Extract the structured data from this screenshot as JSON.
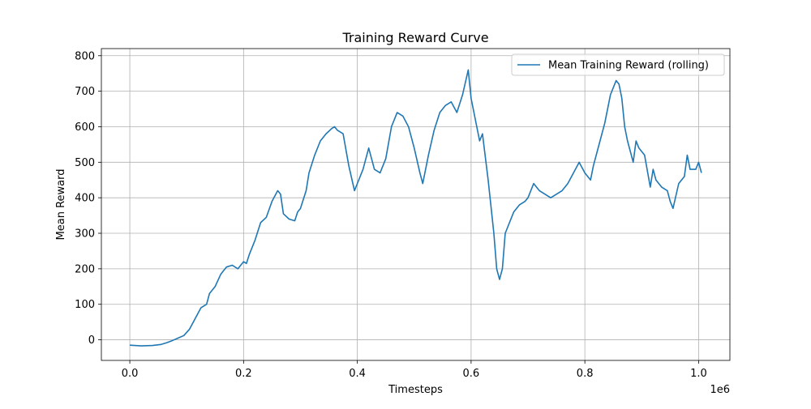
{
  "chart_data": {
    "type": "line",
    "title": "Training Reward Curve",
    "xlabel": "Timesteps",
    "ylabel": "Mean Reward",
    "x_offset_text": "1e6",
    "xlim": [
      -0.05,
      1.055
    ],
    "ylim": [
      -58,
      820
    ],
    "xticks": [
      0.0,
      0.2,
      0.4,
      0.6,
      0.8,
      1.0
    ],
    "xtick_labels": [
      "0.0",
      "0.2",
      "0.4",
      "0.6",
      "0.8",
      "1.0"
    ],
    "yticks": [
      0,
      100,
      200,
      300,
      400,
      500,
      600,
      700,
      800
    ],
    "ytick_labels": [
      "0",
      "100",
      "200",
      "300",
      "400",
      "500",
      "600",
      "700",
      "800"
    ],
    "grid": true,
    "legend_position": "upper right",
    "series": [
      {
        "name": "Mean Training Reward (rolling)",
        "color": "#1f77b4",
        "x": [
          0.0,
          0.02,
          0.04,
          0.055,
          0.065,
          0.075,
          0.085,
          0.095,
          0.105,
          0.115,
          0.125,
          0.135,
          0.14,
          0.15,
          0.16,
          0.17,
          0.18,
          0.19,
          0.2,
          0.205,
          0.21,
          0.22,
          0.23,
          0.24,
          0.25,
          0.26,
          0.265,
          0.27,
          0.28,
          0.29,
          0.295,
          0.3,
          0.31,
          0.315,
          0.325,
          0.335,
          0.345,
          0.355,
          0.36,
          0.365,
          0.375,
          0.385,
          0.395,
          0.4,
          0.41,
          0.42,
          0.43,
          0.44,
          0.45,
          0.46,
          0.47,
          0.48,
          0.49,
          0.5,
          0.51,
          0.515,
          0.525,
          0.535,
          0.545,
          0.555,
          0.565,
          0.575,
          0.585,
          0.595,
          0.6,
          0.61,
          0.615,
          0.62,
          0.63,
          0.64,
          0.645,
          0.65,
          0.655,
          0.66,
          0.665,
          0.675,
          0.685,
          0.695,
          0.7,
          0.71,
          0.72,
          0.73,
          0.74,
          0.75,
          0.76,
          0.77,
          0.78,
          0.79,
          0.8,
          0.81,
          0.815,
          0.825,
          0.835,
          0.845,
          0.855,
          0.86,
          0.865,
          0.87,
          0.875,
          0.885,
          0.89,
          0.895,
          0.905,
          0.915,
          0.92,
          0.925,
          0.935,
          0.945,
          0.95,
          0.955,
          0.965,
          0.975,
          0.98,
          0.985,
          0.995,
          1.0,
          1.005
        ],
        "y": [
          -15,
          -17,
          -16,
          -13,
          -8,
          -2,
          5,
          12,
          30,
          60,
          90,
          100,
          130,
          150,
          185,
          205,
          210,
          200,
          220,
          215,
          240,
          280,
          330,
          345,
          390,
          420,
          410,
          355,
          340,
          335,
          360,
          370,
          420,
          470,
          520,
          560,
          580,
          595,
          600,
          590,
          580,
          490,
          420,
          440,
          480,
          540,
          480,
          470,
          510,
          600,
          640,
          630,
          600,
          540,
          470,
          440,
          520,
          590,
          640,
          660,
          670,
          640,
          690,
          760,
          680,
          600,
          560,
          580,
          450,
          300,
          200,
          170,
          200,
          300,
          320,
          360,
          380,
          390,
          400,
          440,
          420,
          410,
          400,
          410,
          420,
          440,
          470,
          500,
          470,
          450,
          490,
          550,
          610,
          690,
          730,
          720,
          680,
          600,
          560,
          500,
          560,
          540,
          520,
          430,
          480,
          450,
          430,
          420,
          390,
          370,
          440,
          460,
          520,
          480,
          480,
          500,
          470
        ]
      }
    ]
  }
}
